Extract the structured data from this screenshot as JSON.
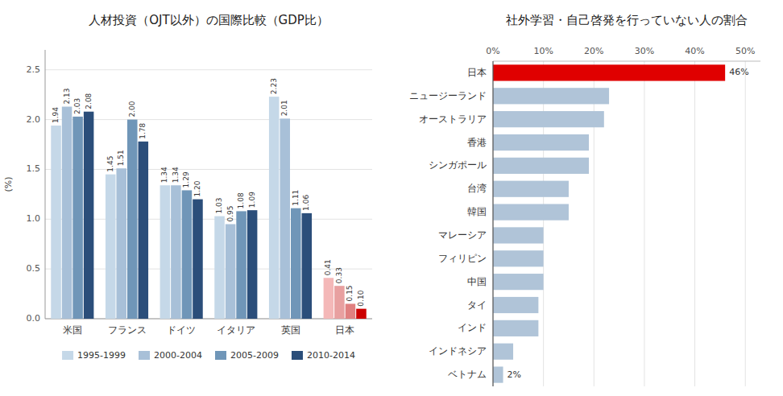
{
  "chart_data": [
    {
      "type": "bar",
      "title": "人材投資（OJT以外）の国際比較（GDP比）",
      "y_label": "(%)",
      "categories": [
        "米国",
        "フランス",
        "ドイツ",
        "イタリア",
        "英国",
        "日本"
      ],
      "series": [
        {
          "name": "1995-1999",
          "color": "#c5d8e8",
          "colors": [
            "#c5d8e8",
            "#c5d8e8",
            "#c5d8e8",
            "#c5d8e8",
            "#c5d8e8",
            "#f4b8b8"
          ],
          "values": [
            1.94,
            1.45,
            1.34,
            1.03,
            2.23,
            0.41
          ],
          "value_labels": [
            "1.94",
            "1.45",
            "1.34",
            "1.03",
            "2.23",
            "0.41"
          ]
        },
        {
          "name": "2000-2004",
          "color": "#a8c0d8",
          "colors": [
            "#a8c0d8",
            "#a8c0d8",
            "#a8c0d8",
            "#a8c0d8",
            "#a8c0d8",
            "#e8a0a0"
          ],
          "values": [
            2.13,
            1.51,
            1.34,
            0.95,
            2.01,
            0.33
          ],
          "value_labels": [
            "2.13",
            "1.51",
            "1.34",
            "0.95",
            "2.01",
            "0.33"
          ]
        },
        {
          "name": "2005-2009",
          "color": "#7096b8",
          "colors": [
            "#7096b8",
            "#7096b8",
            "#7096b8",
            "#7096b8",
            "#7096b8",
            "#e08080"
          ],
          "values": [
            2.03,
            2.0,
            1.29,
            1.08,
            1.11,
            0.15
          ],
          "value_labels": [
            "2.03",
            "2.00",
            "1.29",
            "1.08",
            "1.11",
            "0.15"
          ]
        },
        {
          "name": "2010-2014",
          "color": "#2b4e7a",
          "colors": [
            "#2b4e7a",
            "#2b4e7a",
            "#2b4e7a",
            "#2b4e7a",
            "#2b4e7a",
            "#cc0000"
          ],
          "values": [
            2.08,
            1.78,
            1.2,
            1.09,
            1.06,
            0.1
          ],
          "value_labels": [
            "2.08",
            "1.78",
            "1.20",
            "1.09",
            "1.06",
            "0.10"
          ]
        }
      ],
      "ylim": [
        0,
        2.7
      ],
      "yticks": [
        {
          "value": 0,
          "label": "0.0"
        },
        0.5,
        {
          "value": 1,
          "label": "1.0"
        },
        1.5,
        {
          "value": 2,
          "label": "2.0"
        },
        2.5
      ],
      "grid": true,
      "legend": "bottom",
      "data_labels": true
    },
    {
      "type": "bar",
      "orientation": "horizontal",
      "title": "社外学習・自己啓発を行っていない人の割合",
      "categories": [
        "日本",
        "ニュージーランド",
        "オーストラリア",
        "香港",
        "シンガポール",
        "台湾",
        "韓国",
        "マレーシア",
        "フィリピン",
        "中国",
        "タイ",
        "インド",
        "インドネシア",
        "ベトナム"
      ],
      "values": [
        46,
        23,
        22,
        19,
        19,
        15,
        15,
        10,
        10,
        10,
        9,
        9,
        4,
        2
      ],
      "value_labels": [
        "46%",
        null,
        null,
        null,
        null,
        null,
        null,
        null,
        null,
        null,
        null,
        null,
        null,
        "2%"
      ],
      "colors": [
        "#e00000",
        "#b0c4d8",
        "#b0c4d8",
        "#b0c4d8",
        "#b0c4d8",
        "#b0c4d8",
        "#b0c4d8",
        "#b0c4d8",
        "#b0c4d8",
        "#b0c4d8",
        "#b0c4d8",
        "#b0c4d8",
        "#b0c4d8",
        "#b0c4d8"
      ],
      "xlim": [
        0,
        53
      ],
      "xticks": [
        {
          "value": 0,
          "label": "0%"
        },
        {
          "value": 10,
          "label": "10%"
        },
        {
          "value": 20,
          "label": "20%"
        },
        {
          "value": 30,
          "label": "30%"
        },
        {
          "value": 40,
          "label": "40%"
        },
        {
          "value": 50,
          "label": "50%"
        }
      ],
      "grid": true,
      "data_labels": true
    }
  ]
}
